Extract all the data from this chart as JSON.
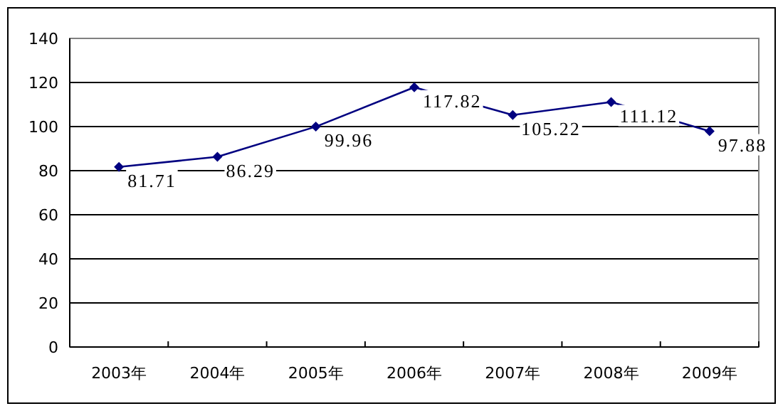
{
  "chart_data": {
    "type": "line",
    "categories": [
      "2003年",
      "2004年",
      "2005年",
      "2006年",
      "2007年",
      "2008年",
      "2009年"
    ],
    "values": [
      81.71,
      86.29,
      99.96,
      117.82,
      105.22,
      111.12,
      97.88
    ],
    "color": "#000080",
    "ylim": [
      0,
      140
    ],
    "yticks": [
      0,
      20,
      40,
      60,
      80,
      100,
      120,
      140
    ],
    "grid": "y",
    "marker": "diamond",
    "line_style": "solid",
    "data_labels": true
  }
}
